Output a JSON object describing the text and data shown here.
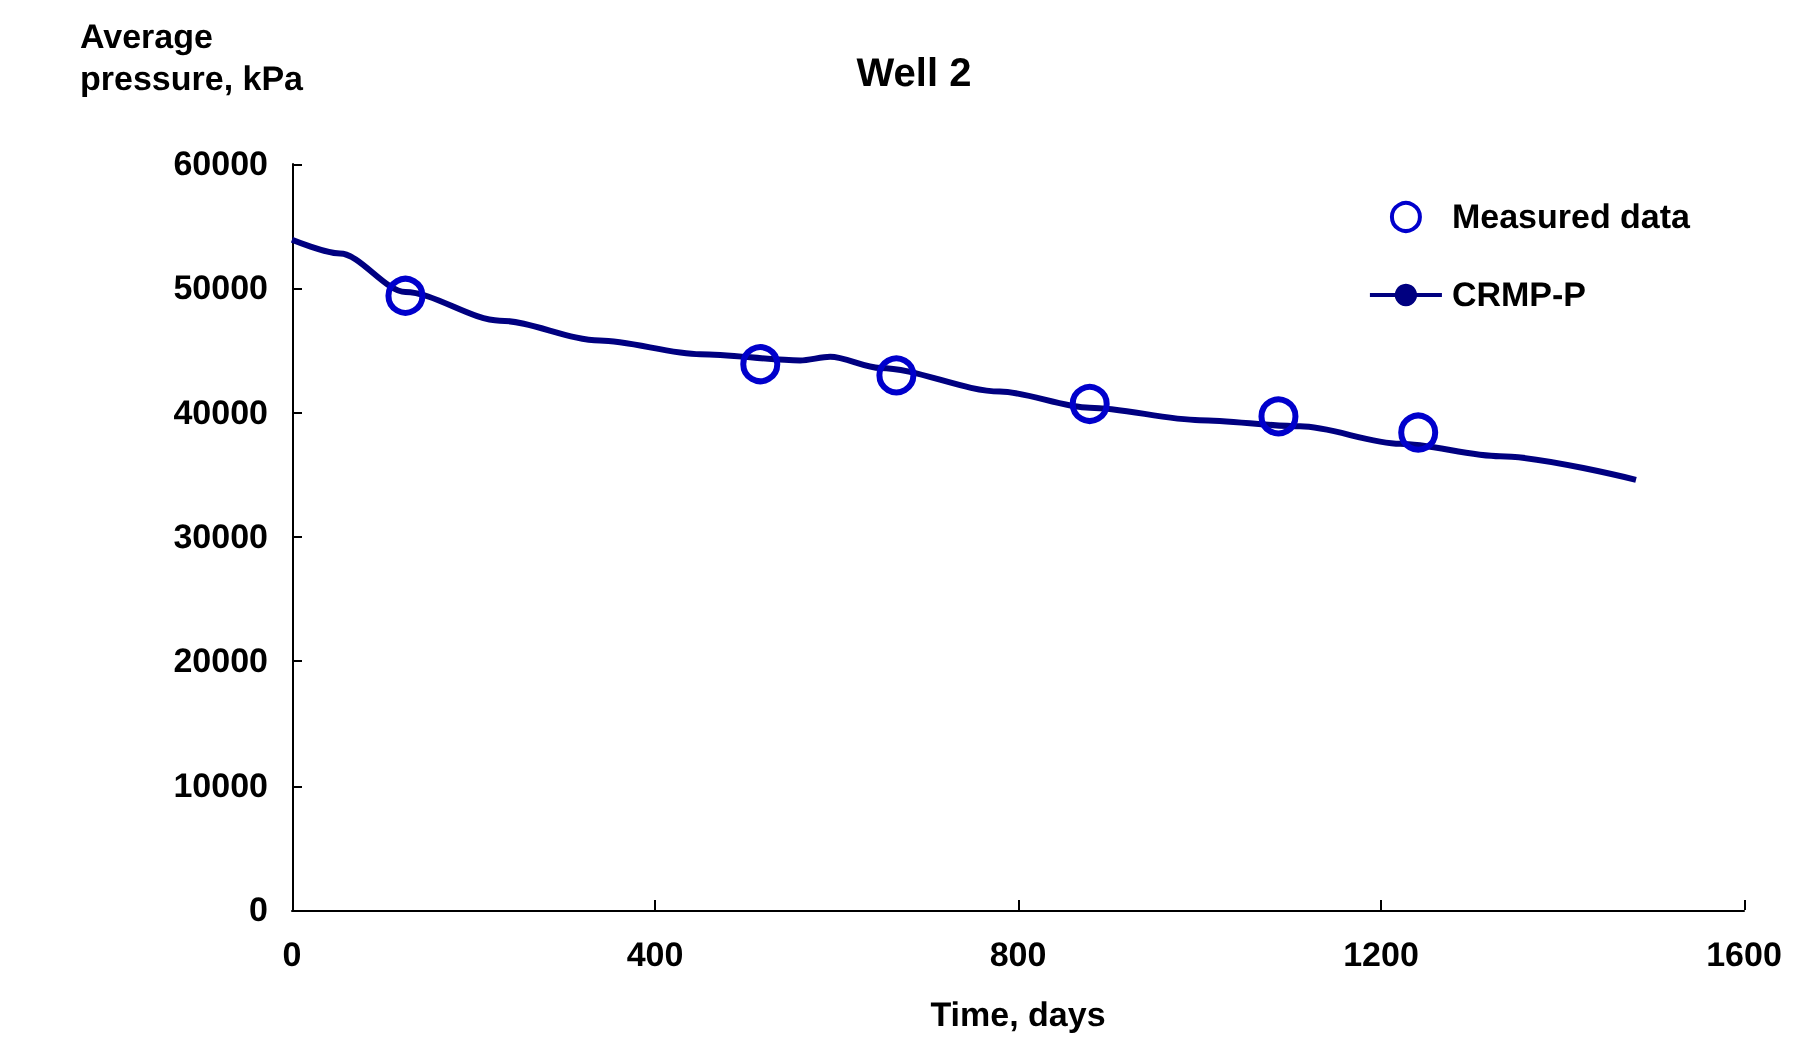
{
  "chart_data": {
    "type": "line",
    "title": "Well 2",
    "xlabel": "Time, days",
    "ylabel": "Average pressure, kPa",
    "xlim": [
      0,
      1600
    ],
    "xticks": [
      0,
      400,
      800,
      1200,
      1600
    ],
    "ylim": [
      0,
      60000
    ],
    "yticks": [
      0,
      10000,
      20000,
      30000,
      40000,
      50000,
      60000
    ],
    "grid": false,
    "legend": "top right",
    "series": [
      {
        "name": "Measured data",
        "type": "scatter",
        "marker": "circle",
        "color": "#0000cc",
        "x": [
          125,
          516,
          666,
          879,
          1087,
          1241
        ],
        "values": [
          49400,
          43900,
          43000,
          40700,
          39700,
          38400
        ]
      },
      {
        "name": "CRMP-P",
        "marker": "none",
        "line_style": "solid",
        "color": "#000080",
        "x": [
          0,
          53,
          125,
          229,
          339,
          450,
          560,
          593,
          648,
          780,
          879,
          1000,
          1111,
          1221,
          1331,
          1481
        ],
        "values": [
          53900,
          52800,
          49700,
          47400,
          45800,
          44700,
          44200,
          44500,
          43600,
          41700,
          40400,
          39400,
          38900,
          37500,
          36500,
          34600
        ]
      }
    ]
  }
}
